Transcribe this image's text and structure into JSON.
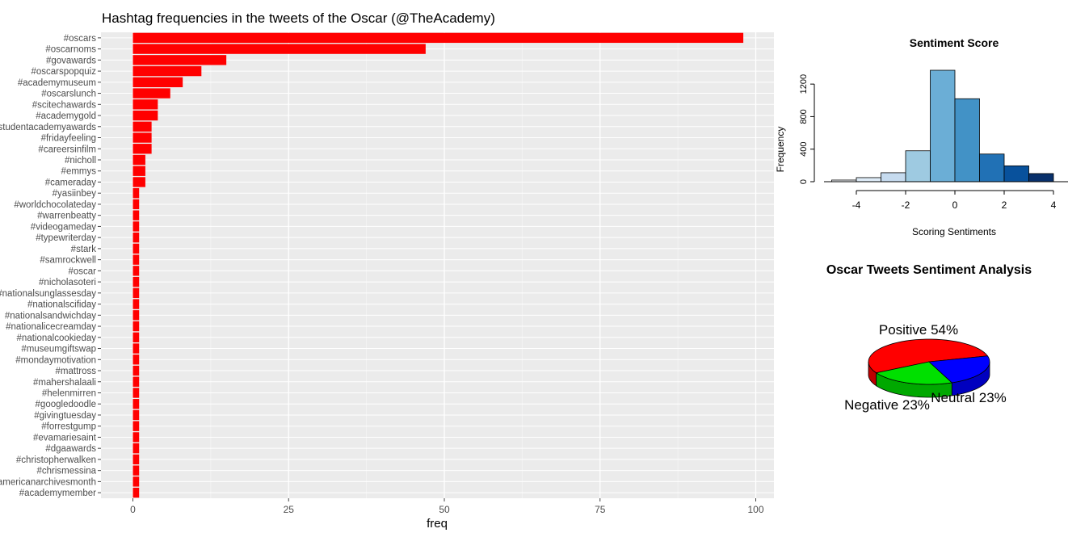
{
  "chart_data": [
    {
      "type": "bar",
      "orientation": "horizontal",
      "title": "Hashtag frequencies in the tweets of the Oscar (@TheAcademy)",
      "xlabel": "freq",
      "ylabel": "",
      "xlim": [
        0,
        100
      ],
      "xticks": [
        "0",
        "25",
        "50",
        "75",
        "100"
      ],
      "grid": true,
      "bar_color": "#ff0000",
      "panel_color": "#ebebeb",
      "categories": [
        "#oscars",
        "#oscarnoms",
        "#govawards",
        "#oscarspopquiz",
        "#academymuseum",
        "#oscarslunch",
        "#scitechawards",
        "#academygold",
        "#studentacademyawards",
        "#fridayfeeling",
        "#careersinfilm",
        "#nicholl",
        "#emmys",
        "#cameraday",
        "#yasiinbey",
        "#worldchocolateday",
        "#warrenbeatty",
        "#videogameday",
        "#typewriterday",
        "#stark",
        "#samrockwell",
        "#oscar",
        "#nicholasoteri",
        "#nationalsunglassesday",
        "#nationalscifiday",
        "#nationalsandwichday",
        "#nationalicecreamday",
        "#nationalcookieday",
        "#museumgiftswap",
        "#mondaymotivation",
        "#mattross",
        "#mahershalaali",
        "#helenmirren",
        "#googledoodle",
        "#givingtuesday",
        "#forrestgump",
        "#evamariesaint",
        "#dgaawards",
        "#christopherwalken",
        "#chrismessina",
        "#americanarchivesmonth",
        "#academymember"
      ],
      "values": [
        98,
        47,
        15,
        11,
        8,
        6,
        4,
        4,
        3,
        3,
        3,
        2,
        2,
        2,
        1,
        1,
        1,
        1,
        1,
        1,
        1,
        1,
        1,
        1,
        1,
        1,
        1,
        1,
        1,
        1,
        1,
        1,
        1,
        1,
        1,
        1,
        1,
        1,
        1,
        1,
        1,
        1
      ]
    },
    {
      "type": "bar",
      "subtype": "histogram",
      "title": "Sentiment Score",
      "xlabel": "Scoring Sentiments",
      "ylabel": "Frequency",
      "xlim": [
        -5,
        5
      ],
      "ylim": [
        0,
        1400
      ],
      "xticks": [
        "-4",
        "-2",
        "0",
        "2",
        "4"
      ],
      "yticks": [
        "0",
        "400",
        "800",
        "1200"
      ],
      "bins": [
        [
          -5,
          -4
        ],
        [
          -4,
          -3
        ],
        [
          -3,
          -2
        ],
        [
          -2,
          -1
        ],
        [
          -1,
          0
        ],
        [
          0,
          1
        ],
        [
          1,
          2
        ],
        [
          2,
          3
        ],
        [
          3,
          4
        ]
      ],
      "values": [
        20,
        50,
        110,
        380,
        1370,
        1020,
        340,
        195,
        100
      ],
      "colors": [
        "#f7fbff",
        "#deebf7",
        "#c6dbef",
        "#9ecae1",
        "#6baed6",
        "#4292c6",
        "#2171b5",
        "#08519c",
        "#08306b"
      ]
    },
    {
      "type": "pie",
      "style": "3d",
      "title": "Oscar Tweets Sentiment Analysis",
      "labels": [
        "Positive 54%",
        "Neutral 23%",
        "Negative 23%"
      ],
      "values": [
        54,
        23,
        23
      ],
      "colors": [
        "#ff0000",
        "#0000ff",
        "#00e000"
      ]
    }
  ]
}
